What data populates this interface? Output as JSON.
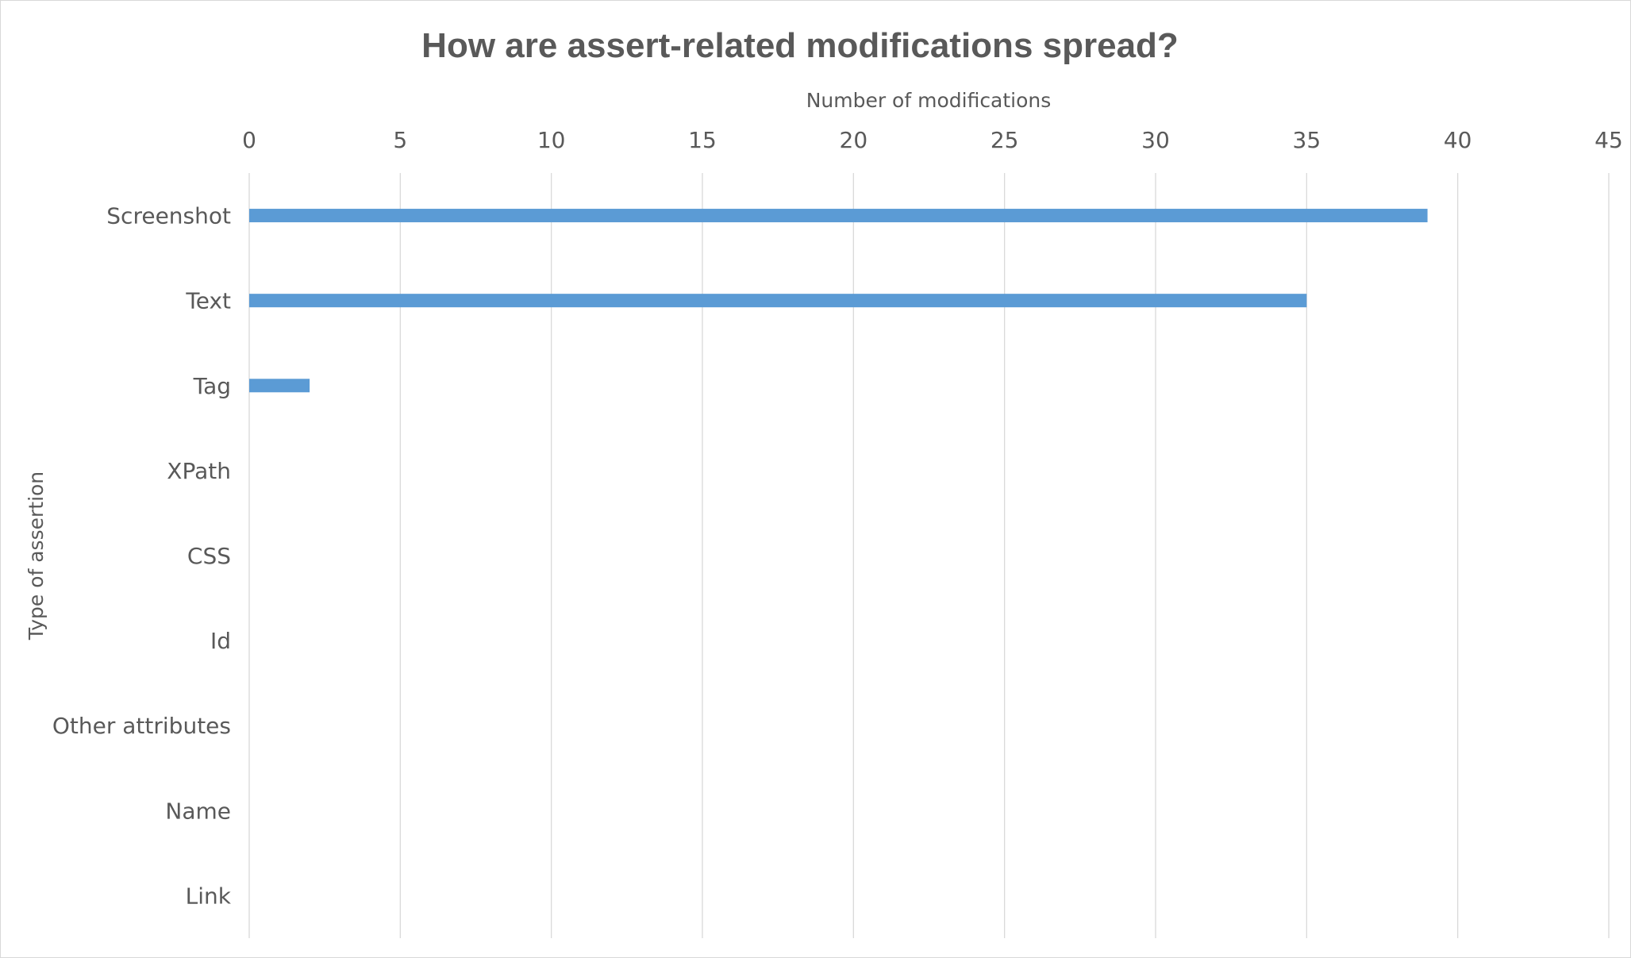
{
  "chart_data": {
    "type": "bar",
    "orientation": "horizontal",
    "title": "How are assert-related modifications spread?",
    "xlabel": "Number of modifications",
    "ylabel": "Type of assertion",
    "xlim": [
      0,
      45
    ],
    "xticks": [
      0,
      5,
      10,
      15,
      20,
      25,
      30,
      35,
      40,
      45
    ],
    "x_axis_position": "top",
    "grid": true,
    "legend": "none",
    "bar_color": "#5b9bd5",
    "categories": [
      "Screenshot",
      "Text",
      "Tag",
      "XPath",
      "CSS",
      "Id",
      "Other attributes",
      "Name",
      "Link"
    ],
    "values": [
      39,
      35,
      2,
      0,
      0,
      0,
      0,
      0,
      0
    ]
  }
}
